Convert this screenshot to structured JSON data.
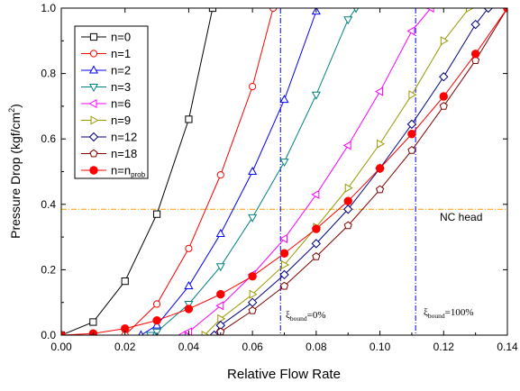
{
  "chart_data": {
    "type": "line",
    "xlabel": "Relative Flow Rate",
    "ylabel_main": "Pressure Drop (kgf/cm",
    "ylabel_sup": "2",
    "ylabel_end": ")",
    "xlim": [
      0.0,
      0.14
    ],
    "ylim": [
      0.0,
      1.0
    ],
    "xticks": [
      0.0,
      0.02,
      0.04,
      0.06,
      0.08,
      0.1,
      0.12,
      0.14
    ],
    "yticks": [
      0.0,
      0.2,
      0.4,
      0.6,
      0.8,
      1.0
    ],
    "xtick_labels": [
      "0.00",
      "0.02",
      "0.04",
      "0.06",
      "0.08",
      "0.10",
      "0.12",
      "0.14"
    ],
    "ytick_labels": [
      "0.0",
      "0.2",
      "0.4",
      "0.6",
      "0.8",
      "1.0"
    ],
    "grid": false,
    "legend_position": "top-left",
    "series": [
      {
        "name": "n=0",
        "color": "#000000",
        "marker": "square",
        "x": [
          0.0,
          0.01,
          0.02,
          0.03,
          0.04,
          0.0475
        ],
        "y": [
          0.0,
          0.04,
          0.165,
          0.37,
          0.66,
          1.0
        ]
      },
      {
        "name": "n=1",
        "color": "#ff0000",
        "marker": "circle",
        "x": [
          0.02,
          0.03,
          0.04,
          0.05,
          0.06,
          0.0665
        ],
        "y": [
          0.0,
          0.095,
          0.265,
          0.49,
          0.76,
          1.0
        ]
      },
      {
        "name": "n=2",
        "color": "#0000ff",
        "marker": "triangle-up",
        "x": [
          0.025,
          0.03,
          0.04,
          0.05,
          0.06,
          0.07,
          0.08
        ],
        "y": [
          0.0,
          0.03,
          0.15,
          0.31,
          0.5,
          0.72,
          0.99
        ]
      },
      {
        "name": "n=3",
        "color": "#008080",
        "marker": "triangle-down",
        "x": [
          0.028,
          0.03,
          0.04,
          0.05,
          0.06,
          0.07,
          0.08,
          0.09,
          0.0925
        ],
        "y": [
          0.0,
          0.01,
          0.095,
          0.21,
          0.36,
          0.53,
          0.735,
          0.965,
          1.0
        ]
      },
      {
        "name": "n=6",
        "color": "#ff00ff",
        "marker": "triangle-left",
        "x": [
          0.038,
          0.04,
          0.05,
          0.06,
          0.07,
          0.08,
          0.09,
          0.1,
          0.11,
          0.116
        ],
        "y": [
          0.0,
          0.01,
          0.09,
          0.185,
          0.295,
          0.43,
          0.58,
          0.745,
          0.93,
          1.0
        ]
      },
      {
        "name": "n=9",
        "color": "#999900",
        "marker": "triangle-right",
        "x": [
          0.045,
          0.05,
          0.06,
          0.07,
          0.08,
          0.09,
          0.1,
          0.11,
          0.12,
          0.128
        ],
        "y": [
          0.0,
          0.05,
          0.125,
          0.215,
          0.33,
          0.45,
          0.585,
          0.735,
          0.9,
          1.0
        ]
      },
      {
        "name": "n=12",
        "color": "#000080",
        "marker": "diamond",
        "x": [
          0.048,
          0.05,
          0.06,
          0.07,
          0.08,
          0.09,
          0.1,
          0.11,
          0.12,
          0.13,
          0.134
        ],
        "y": [
          0.0,
          0.03,
          0.1,
          0.185,
          0.28,
          0.385,
          0.51,
          0.645,
          0.79,
          0.95,
          1.0
        ]
      },
      {
        "name": "n=18",
        "color": "#800000",
        "marker": "pentagon",
        "x": [
          0.05,
          0.06,
          0.07,
          0.08,
          0.09,
          0.1,
          0.11,
          0.12,
          0.13,
          0.14
        ],
        "y": [
          0.01,
          0.075,
          0.15,
          0.24,
          0.335,
          0.445,
          0.565,
          0.7,
          0.84,
          1.0
        ]
      },
      {
        "name_prefix": "n=n",
        "name_sub": "prob",
        "color": "#ff0000",
        "marker": "filled-circle",
        "x": [
          0.0,
          0.01,
          0.02,
          0.03,
          0.04,
          0.05,
          0.06,
          0.07,
          0.08,
          0.09,
          0.1,
          0.11,
          0.12,
          0.13,
          0.14
        ],
        "y": [
          0.0,
          0.005,
          0.02,
          0.045,
          0.08,
          0.125,
          0.18,
          0.25,
          0.325,
          0.41,
          0.51,
          0.615,
          0.73,
          0.86,
          1.0
        ]
      }
    ],
    "reference_lines": {
      "nc_head": {
        "y": 0.385,
        "label": "NC head",
        "color": "#ff9900"
      },
      "xi_low": {
        "x": 0.0688,
        "color": "#0000ff",
        "label_main": "ξ",
        "label_sub": "bound",
        "label_end": "=0%"
      },
      "xi_high": {
        "x": 0.1112,
        "color": "#0000ff",
        "label_main": "ξ",
        "label_sub": "bound",
        "label_end": "=100%"
      }
    }
  }
}
